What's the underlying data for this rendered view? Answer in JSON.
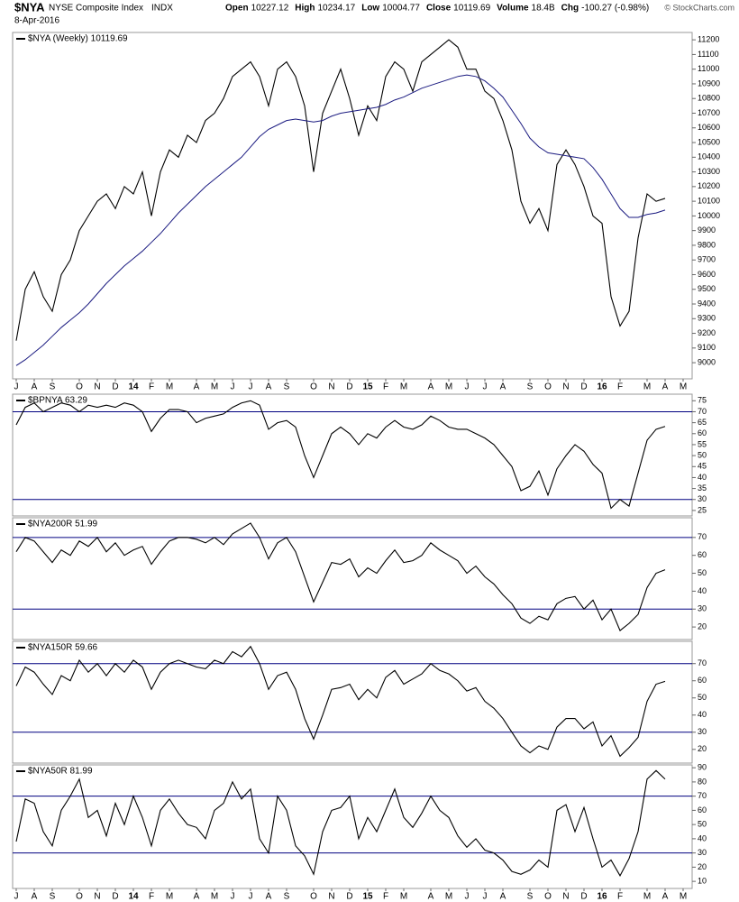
{
  "header": {
    "symbol": "$NYA",
    "name": "NYSE Composite Index",
    "exchange": "INDX",
    "date": "8-Apr-2016",
    "quote": [
      {
        "label": "Open",
        "value": "10227.12"
      },
      {
        "label": "High",
        "value": "10234.17"
      },
      {
        "label": "Low",
        "value": "10004.77"
      },
      {
        "label": "Close",
        "value": "10119.69"
      },
      {
        "label": "Volume",
        "value": "18.4B"
      },
      {
        "label": "Chg",
        "value": "-100.27 (-0.98%)"
      }
    ],
    "credit": "© StockCharts.com"
  },
  "chart_data": [
    {
      "type": "line",
      "ylim": [
        8890,
        11250
      ],
      "yticks": [
        9000,
        9100,
        9200,
        9300,
        9400,
        9500,
        9600,
        9700,
        9800,
        9900,
        10000,
        10100,
        10200,
        10300,
        10400,
        10500,
        10600,
        10700,
        10800,
        10900,
        11000,
        11100,
        11200
      ],
      "categories": [
        "J",
        null,
        "A",
        null,
        "S",
        null,
        null,
        "O",
        null,
        "N",
        null,
        "D",
        null,
        "14",
        null,
        "F",
        null,
        "M",
        null,
        null,
        "A",
        null,
        "M",
        null,
        "J",
        null,
        "J",
        null,
        "A",
        null,
        "S",
        null,
        null,
        "O",
        null,
        "N",
        null,
        "D",
        null,
        "15",
        null,
        "F",
        null,
        "M",
        null,
        null,
        "A",
        null,
        "M",
        null,
        "J",
        null,
        "J",
        null,
        "A",
        null,
        null,
        "S",
        null,
        "O",
        null,
        "N",
        null,
        "D",
        null,
        "16",
        null,
        "F",
        null,
        null,
        "M",
        null,
        "A",
        null,
        "M"
      ],
      "series": [
        {
          "name": "$NYA (Weekly) 10119.69",
          "color": "#000000",
          "values": [
            9150,
            9500,
            9620,
            9450,
            9350,
            9600,
            9700,
            9900,
            10000,
            10100,
            10150,
            10050,
            10200,
            10150,
            10300,
            10000,
            10300,
            10450,
            10400,
            10550,
            10500,
            10650,
            10700,
            10800,
            10950,
            11000,
            11050,
            10950,
            10750,
            11000,
            11050,
            10950,
            10750,
            10300,
            10700,
            10850,
            11000,
            10800,
            10550,
            10750,
            10650,
            10950,
            11050,
            11000,
            10850,
            11050,
            11100,
            11150,
            11200,
            11150,
            11000,
            11000,
            10850,
            10800,
            10650,
            10450,
            10100,
            9950,
            10050,
            9900,
            10350,
            10450,
            10350,
            10200,
            10000,
            9950,
            9450,
            9250,
            9350,
            9850,
            10150,
            10100,
            10119.69,
            null,
            null
          ]
        },
        {
          "color": "#1a1a80",
          "values": [
            8980,
            9020,
            9070,
            9120,
            9180,
            9240,
            9290,
            9340,
            9400,
            9470,
            9540,
            9600,
            9660,
            9710,
            9760,
            9820,
            9880,
            9950,
            10020,
            10080,
            10140,
            10200,
            10250,
            10300,
            10350,
            10400,
            10470,
            10540,
            10590,
            10620,
            10650,
            10660,
            10650,
            10640,
            10650,
            10680,
            10700,
            10710,
            10720,
            10730,
            10740,
            10760,
            10790,
            10810,
            10840,
            10870,
            10890,
            10910,
            10930,
            10950,
            10960,
            10950,
            10920,
            10870,
            10810,
            10720,
            10630,
            10530,
            10470,
            10430,
            10420,
            10410,
            10400,
            10390,
            10330,
            10250,
            10150,
            10050,
            9990,
            9990,
            10010,
            10020,
            10040,
            null,
            null
          ]
        }
      ]
    },
    {
      "type": "line",
      "ylim": [
        22.5,
        78
      ],
      "yticks": [
        25,
        30,
        35,
        40,
        45,
        50,
        55,
        60,
        65,
        70,
        75
      ],
      "hlines": [
        70,
        30
      ],
      "hline_color": "#000080",
      "series": [
        {
          "name": "$BPNYA 63.29",
          "color": "#000000",
          "values": [
            64,
            72,
            74,
            70,
            72,
            74,
            73,
            70,
            73,
            72,
            73,
            72,
            74,
            73,
            70,
            61,
            67,
            71,
            71,
            70,
            65,
            67,
            68,
            69,
            72,
            74,
            75,
            73,
            62,
            65,
            66,
            63,
            50,
            40,
            50,
            60,
            63,
            60,
            55,
            60,
            58,
            63,
            66,
            63,
            62,
            64,
            68,
            66,
            63,
            62,
            62,
            60,
            58,
            55,
            50,
            45,
            34,
            36,
            43,
            32,
            44,
            50,
            55,
            52,
            46,
            42,
            26,
            30,
            27,
            42,
            57,
            62,
            63.29,
            null,
            null
          ]
        }
      ]
    },
    {
      "type": "line",
      "ylim": [
        13,
        81
      ],
      "yticks": [
        20,
        30,
        40,
        50,
        60,
        70
      ],
      "hlines": [
        70,
        30
      ],
      "hline_color": "#000080",
      "series": [
        {
          "name": "$NYA200R 51.99",
          "color": "#000000",
          "values": [
            62,
            70,
            68,
            62,
            56,
            63,
            60,
            68,
            65,
            70,
            62,
            67,
            60,
            63,
            65,
            55,
            62,
            68,
            70,
            70,
            69,
            67,
            70,
            66,
            72,
            75,
            78,
            70,
            58,
            67,
            70,
            62,
            48,
            34,
            45,
            56,
            55,
            58,
            48,
            53,
            50,
            57,
            63,
            56,
            57,
            60,
            67,
            63,
            60,
            57,
            50,
            54,
            48,
            44,
            38,
            33,
            25,
            22,
            26,
            24,
            33,
            36,
            37,
            30,
            35,
            24,
            30,
            18,
            22,
            27,
            42,
            50,
            51.99,
            null,
            null
          ]
        }
      ]
    },
    {
      "type": "line",
      "ylim": [
        12,
        83
      ],
      "yticks": [
        20,
        30,
        40,
        50,
        60,
        70
      ],
      "hlines": [
        70,
        30
      ],
      "hline_color": "#000080",
      "series": [
        {
          "name": "$NYA150R 59.66",
          "color": "#000000",
          "values": [
            57,
            68,
            65,
            58,
            52,
            63,
            60,
            72,
            65,
            70,
            63,
            70,
            65,
            72,
            68,
            55,
            65,
            70,
            72,
            70,
            68,
            67,
            72,
            70,
            77,
            74,
            80,
            70,
            55,
            63,
            65,
            55,
            38,
            26,
            40,
            55,
            56,
            58,
            49,
            55,
            50,
            62,
            66,
            58,
            61,
            64,
            70,
            66,
            64,
            60,
            54,
            56,
            48,
            44,
            38,
            30,
            22,
            18,
            22,
            20,
            33,
            38,
            38,
            32,
            36,
            22,
            28,
            16,
            21,
            27,
            48,
            58,
            59.66,
            null,
            null
          ]
        }
      ]
    },
    {
      "type": "line",
      "ylim": [
        5,
        92
      ],
      "yticks": [
        10,
        20,
        30,
        40,
        50,
        60,
        70,
        80,
        90
      ],
      "hlines": [
        70,
        30
      ],
      "hline_color": "#000080",
      "categories": [
        "J",
        null,
        "A",
        null,
        "S",
        null,
        null,
        "O",
        null,
        "N",
        null,
        "D",
        null,
        "14",
        null,
        "F",
        null,
        "M",
        null,
        null,
        "A",
        null,
        "M",
        null,
        "J",
        null,
        "J",
        null,
        "A",
        null,
        "S",
        null,
        null,
        "O",
        null,
        "N",
        null,
        "D",
        null,
        "15",
        null,
        "F",
        null,
        "M",
        null,
        null,
        "A",
        null,
        "M",
        null,
        "J",
        null,
        "J",
        null,
        "A",
        null,
        null,
        "S",
        null,
        "O",
        null,
        "N",
        null,
        "D",
        null,
        "16",
        null,
        "F",
        null,
        null,
        "M",
        null,
        "A",
        null,
        "M"
      ],
      "series": [
        {
          "name": "$NYA50R 81.99",
          "color": "#000000",
          "values": [
            38,
            68,
            65,
            45,
            35,
            60,
            70,
            82,
            55,
            60,
            42,
            65,
            50,
            70,
            55,
            35,
            60,
            68,
            58,
            50,
            48,
            40,
            60,
            65,
            80,
            68,
            75,
            40,
            30,
            70,
            60,
            35,
            28,
            15,
            45,
            60,
            62,
            70,
            40,
            55,
            45,
            60,
            75,
            55,
            48,
            58,
            70,
            60,
            55,
            42,
            34,
            40,
            32,
            30,
            25,
            17,
            15,
            18,
            25,
            20,
            60,
            64,
            45,
            62,
            40,
            20,
            25,
            14,
            26,
            45,
            82,
            88,
            81.99,
            null,
            null
          ]
        }
      ]
    }
  ]
}
